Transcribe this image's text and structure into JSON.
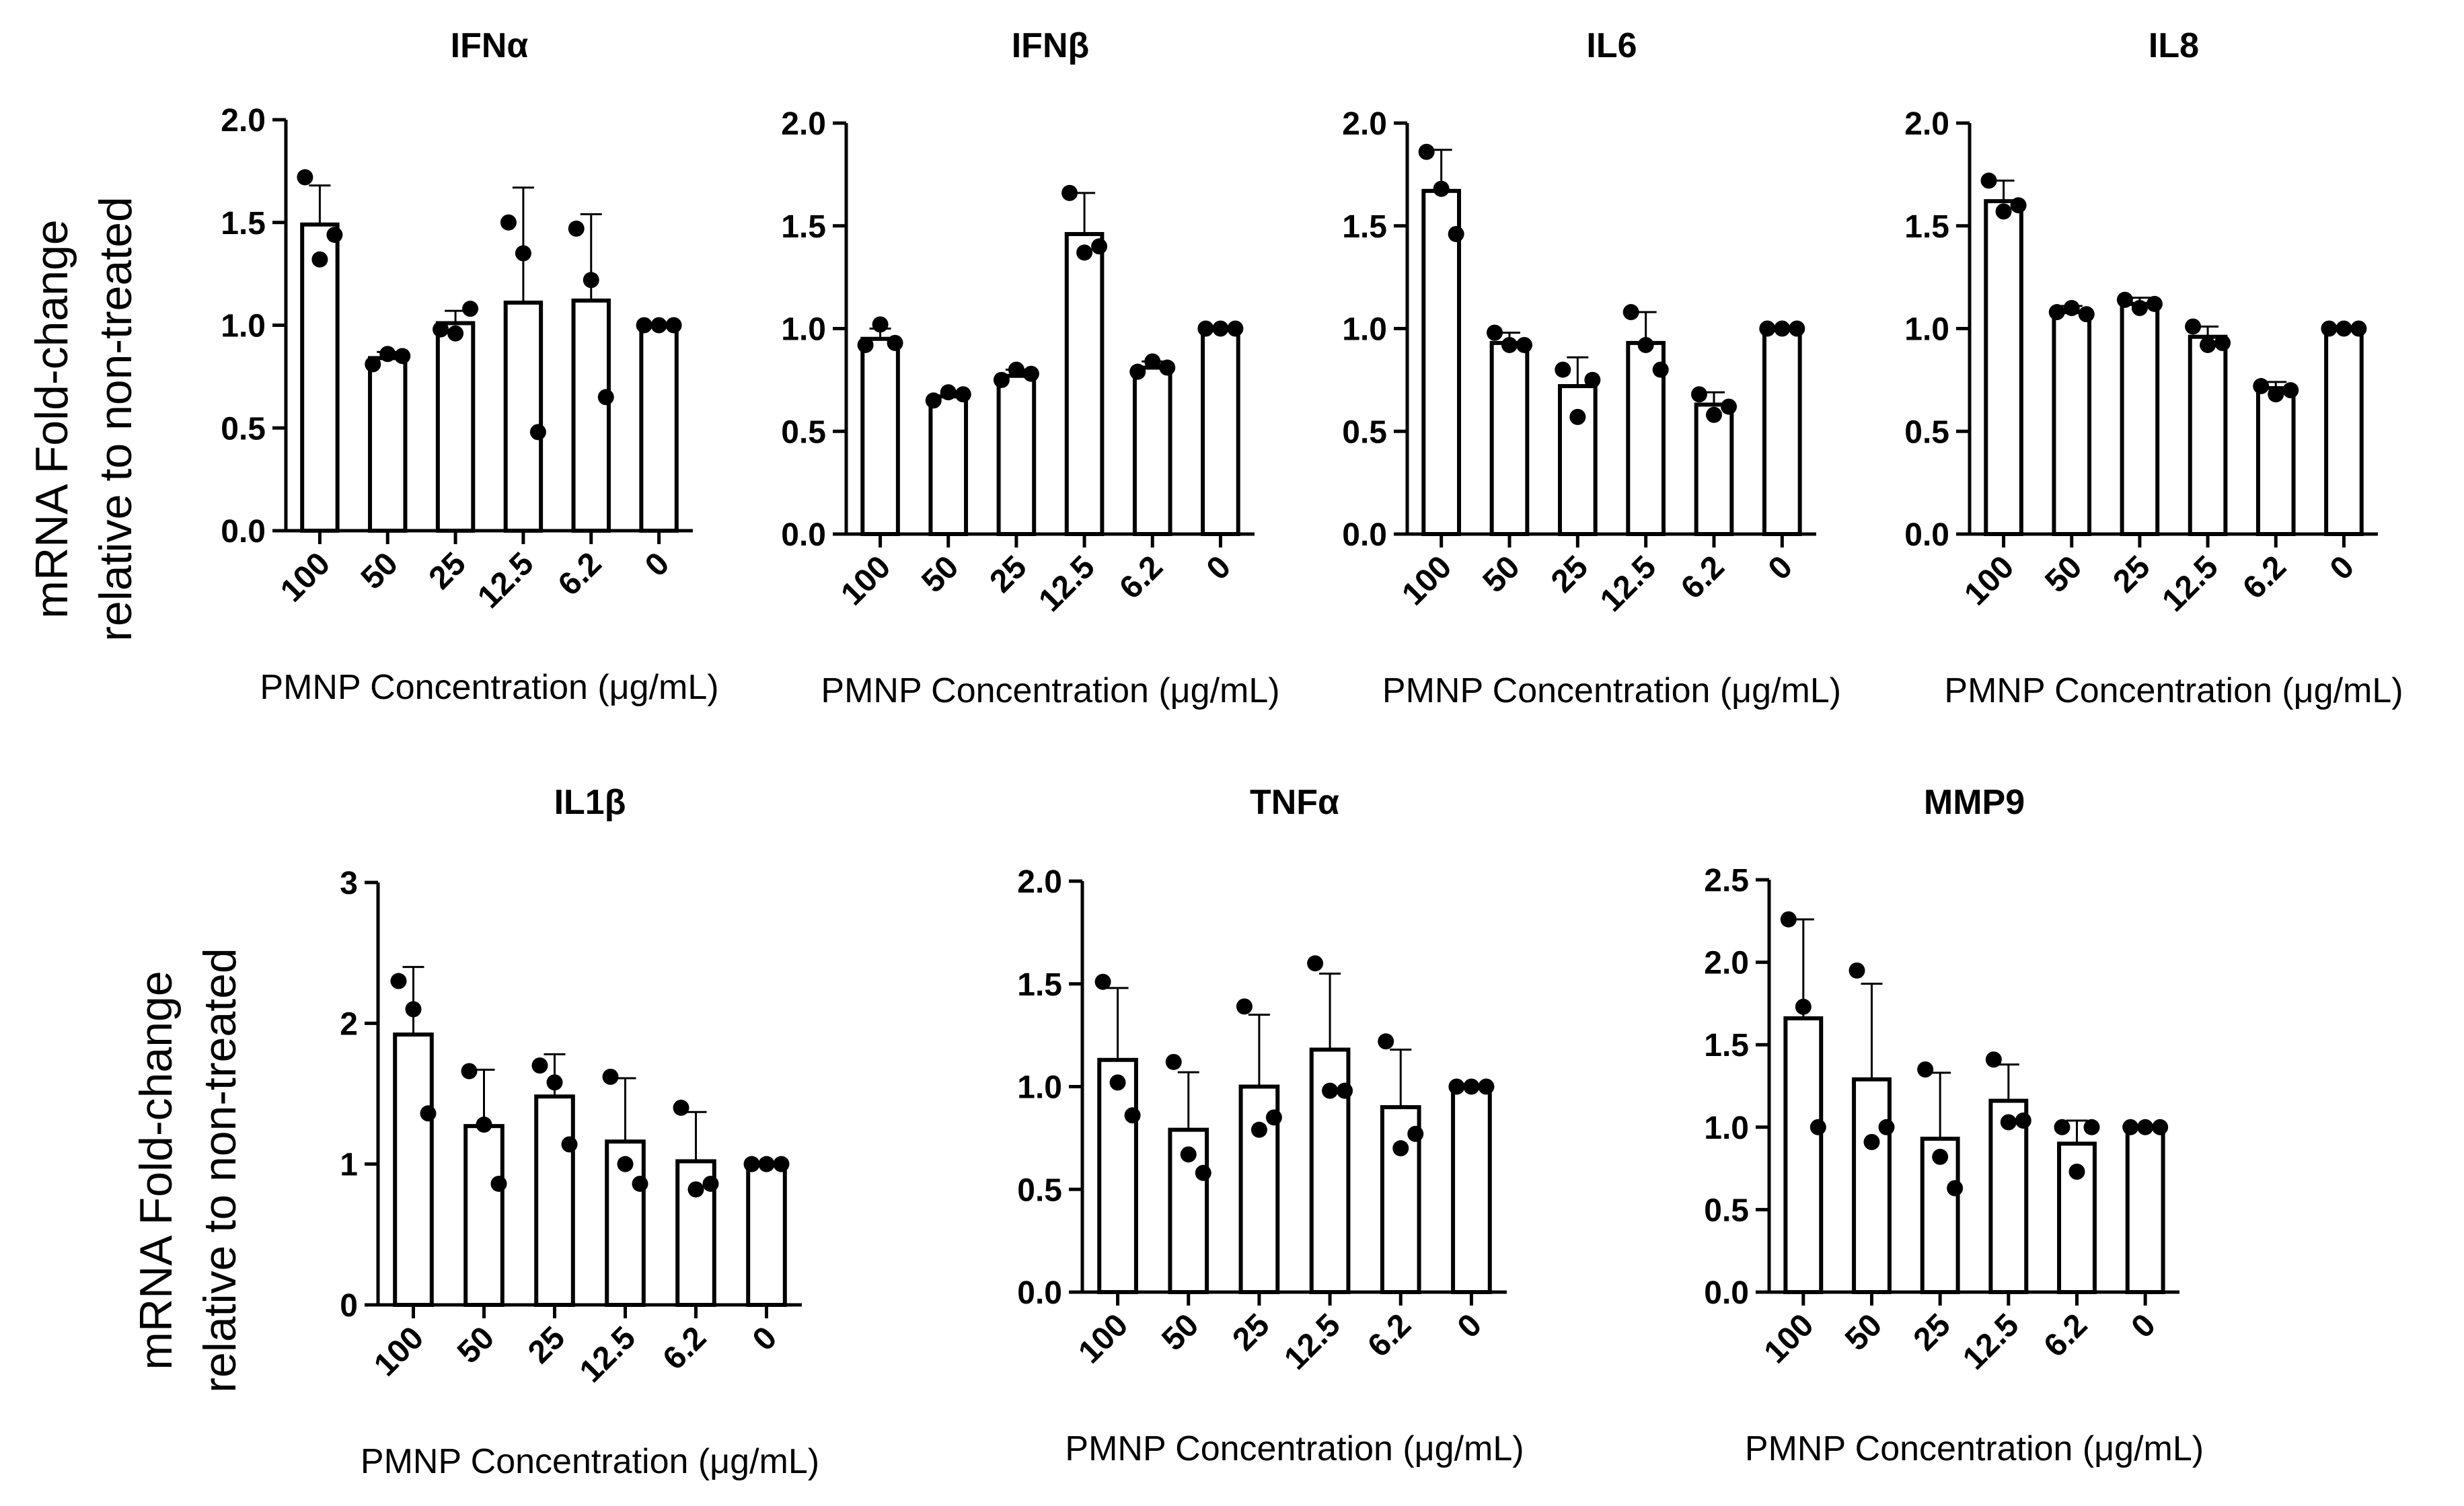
{
  "figure": {
    "row_ylabels": [
      [
        "mRNA Fold-change",
        "relative to non-treated"
      ],
      [
        "mRNA Fold-change",
        "relative to non-treated"
      ]
    ]
  },
  "chart_data": [
    {
      "type": "bar",
      "title": "IFNα",
      "xlabel": "PMNP Concentration (μg/mL)",
      "ylabel": "mRNA Fold-change relative to non-treated",
      "categories": [
        "100",
        "50",
        "25",
        "12.5",
        "6.2",
        "0"
      ],
      "values": [
        1.49,
        0.84,
        1.01,
        1.11,
        1.12,
        1.0
      ],
      "error_sd": [
        0.19,
        0.03,
        0.06,
        0.56,
        0.42,
        0.01
      ],
      "points": [
        [
          1.72,
          1.32,
          1.44
        ],
        [
          0.81,
          0.86,
          0.85
        ],
        [
          0.98,
          0.96,
          1.08
        ],
        [
          1.5,
          1.35,
          0.48
        ],
        [
          1.47,
          1.22,
          0.65
        ],
        [
          1.0,
          1.0,
          1.0
        ]
      ],
      "ylim": [
        0,
        2.0
      ],
      "yticks": [
        "0.0",
        "0.5",
        "1.0",
        "1.5",
        "2.0"
      ]
    },
    {
      "type": "bar",
      "title": "IFNβ",
      "xlabel": "PMNP Concentration (μg/mL)",
      "ylabel": "mRNA Fold-change relative to non-treated",
      "categories": [
        "100",
        "50",
        "25",
        "12.5",
        "6.2",
        "0"
      ],
      "values": [
        0.95,
        0.67,
        0.77,
        1.46,
        0.81,
        1.0
      ],
      "error_sd": [
        0.05,
        0.02,
        0.03,
        0.2,
        0.03,
        0.01
      ],
      "points": [
        [
          0.92,
          1.02,
          0.93
        ],
        [
          0.65,
          0.69,
          0.68
        ],
        [
          0.75,
          0.8,
          0.78
        ],
        [
          1.66,
          1.37,
          1.4
        ],
        [
          0.79,
          0.84,
          0.81
        ],
        [
          1.0,
          1.0,
          1.0
        ]
      ],
      "ylim": [
        0,
        2.0
      ],
      "yticks": [
        "0.0",
        "0.5",
        "1.0",
        "1.5",
        "2.0"
      ]
    },
    {
      "type": "bar",
      "title": "IL6",
      "xlabel": "PMNP Concentration (μg/mL)",
      "ylabel": "mRNA Fold-change relative to non-treated",
      "categories": [
        "100",
        "50",
        "25",
        "12.5",
        "6.2",
        "0"
      ],
      "values": [
        1.67,
        0.93,
        0.72,
        0.93,
        0.63,
        1.0
      ],
      "error_sd": [
        0.2,
        0.05,
        0.14,
        0.15,
        0.06,
        0.01
      ],
      "points": [
        [
          1.86,
          1.68,
          1.46
        ],
        [
          0.98,
          0.92,
          0.92
        ],
        [
          0.8,
          0.57,
          0.75
        ],
        [
          1.08,
          0.92,
          0.8
        ],
        [
          0.68,
          0.58,
          0.62
        ],
        [
          1.0,
          1.0,
          1.0
        ]
      ],
      "ylim": [
        0,
        2.0
      ],
      "yticks": [
        "0.0",
        "0.5",
        "1.0",
        "1.5",
        "2.0"
      ]
    },
    {
      "type": "bar",
      "title": "IL8",
      "xlabel": "PMNP Concentration (μg/mL)",
      "ylabel": "mRNA Fold-change relative to non-treated",
      "categories": [
        "100",
        "50",
        "25",
        "12.5",
        "6.2",
        "0"
      ],
      "values": [
        1.62,
        1.08,
        1.12,
        0.96,
        0.71,
        1.0
      ],
      "error_sd": [
        0.1,
        0.03,
        0.03,
        0.05,
        0.03,
        0.01
      ],
      "points": [
        [
          1.72,
          1.57,
          1.6
        ],
        [
          1.08,
          1.1,
          1.07
        ],
        [
          1.14,
          1.1,
          1.12
        ],
        [
          1.01,
          0.92,
          0.93
        ],
        [
          0.72,
          0.68,
          0.7
        ],
        [
          1.0,
          1.0,
          1.0
        ]
      ],
      "ylim": [
        0,
        2.0
      ],
      "yticks": [
        "0.0",
        "0.5",
        "1.0",
        "1.5",
        "2.0"
      ]
    },
    {
      "type": "bar",
      "title": "IL1β",
      "xlabel": "PMNP Concentration (μg/mL)",
      "ylabel": "mRNA Fold-change relative to non-treated",
      "categories": [
        "100",
        "50",
        "25",
        "12.5",
        "6.2",
        "0"
      ],
      "values": [
        1.92,
        1.27,
        1.48,
        1.16,
        1.02,
        1.0
      ],
      "error_sd": [
        0.48,
        0.4,
        0.3,
        0.45,
        0.35,
        0.01
      ],
      "points": [
        [
          2.3,
          2.1,
          1.36
        ],
        [
          1.66,
          1.28,
          0.86
        ],
        [
          1.7,
          1.58,
          1.14
        ],
        [
          1.62,
          1.0,
          0.86
        ],
        [
          1.4,
          0.82,
          0.86
        ],
        [
          1.0,
          1.0,
          1.0
        ]
      ],
      "ylim": [
        0,
        3
      ],
      "yticks": [
        "0",
        "1",
        "2",
        "3"
      ]
    },
    {
      "type": "bar",
      "title": "TNFα",
      "xlabel": "PMNP Concentration (μg/mL)",
      "ylabel": "mRNA Fold-change relative to non-treated",
      "categories": [
        "100",
        "50",
        "25",
        "12.5",
        "6.2",
        "0"
      ],
      "values": [
        1.13,
        0.79,
        1.0,
        1.18,
        0.9,
        1.0
      ],
      "error_sd": [
        0.35,
        0.28,
        0.35,
        0.37,
        0.28,
        0.01
      ],
      "points": [
        [
          1.51,
          1.02,
          0.86
        ],
        [
          1.12,
          0.67,
          0.58
        ],
        [
          1.39,
          0.79,
          0.85
        ],
        [
          1.6,
          0.98,
          0.98
        ],
        [
          1.22,
          0.7,
          0.77
        ],
        [
          1.0,
          1.0,
          1.0
        ]
      ],
      "ylim": [
        0,
        2.0
      ],
      "yticks": [
        "0.0",
        "0.5",
        "1.0",
        "1.5",
        "2.0"
      ]
    },
    {
      "type": "bar",
      "title": "MMP9",
      "xlabel": "PMNP Concentration (μg/mL)",
      "ylabel": "mRNA Fold-change relative to non-treated",
      "categories": [
        "100",
        "50",
        "25",
        "12.5",
        "6.2",
        "0"
      ],
      "values": [
        1.66,
        1.29,
        0.93,
        1.16,
        0.9,
        1.0
      ],
      "error_sd": [
        0.6,
        0.58,
        0.4,
        0.22,
        0.14,
        0.01
      ],
      "points": [
        [
          2.26,
          1.73,
          1.0
        ],
        [
          1.95,
          0.91,
          1.0
        ],
        [
          1.35,
          0.82,
          0.63
        ],
        [
          1.41,
          1.03,
          1.04
        ],
        [
          1.0,
          0.73,
          1.0
        ],
        [
          1.0,
          1.0,
          1.0
        ]
      ],
      "ylim": [
        0,
        2.5
      ],
      "yticks": [
        "0.0",
        "0.5",
        "1.0",
        "1.5",
        "2.0",
        "2.5"
      ]
    }
  ]
}
